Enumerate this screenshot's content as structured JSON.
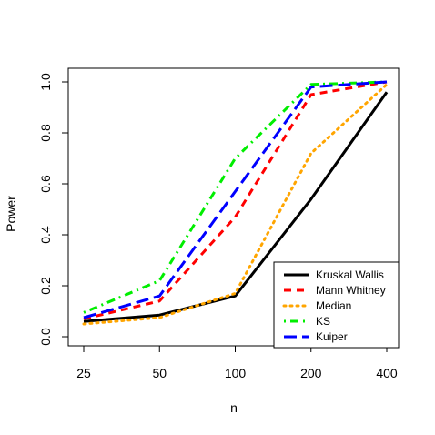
{
  "chart_data": {
    "type": "line",
    "title": "",
    "xlabel": "n",
    "ylabel": "Power",
    "categories": [
      "25",
      "50",
      "100",
      "200",
      "400"
    ],
    "ylim": [
      0.0,
      1.0
    ],
    "yticks": [
      "0.0",
      "0.2",
      "0.4",
      "0.6",
      "0.8",
      "1.0"
    ],
    "grid": false,
    "legend_position": "bottom-right",
    "series": [
      {
        "name": "Kruskal Wallis",
        "color": "#000000",
        "dash": "solid",
        "values": [
          0.06,
          0.085,
          0.16,
          0.54,
          0.96
        ]
      },
      {
        "name": "Mann Whitney",
        "color": "#ff0000",
        "dash": "dashed",
        "values": [
          0.07,
          0.14,
          0.47,
          0.95,
          1.0
        ]
      },
      {
        "name": "Median",
        "color": "#ffa500",
        "dash": "dotted",
        "values": [
          0.05,
          0.075,
          0.17,
          0.72,
          0.99
        ]
      },
      {
        "name": "KS",
        "color": "#00ee00",
        "dash": "dotdash",
        "values": [
          0.095,
          0.22,
          0.7,
          0.99,
          1.0
        ]
      },
      {
        "name": "Kuiper",
        "color": "#0000ff",
        "dash": "longdash",
        "values": [
          0.075,
          0.16,
          0.57,
          0.98,
          1.0
        ]
      }
    ]
  }
}
